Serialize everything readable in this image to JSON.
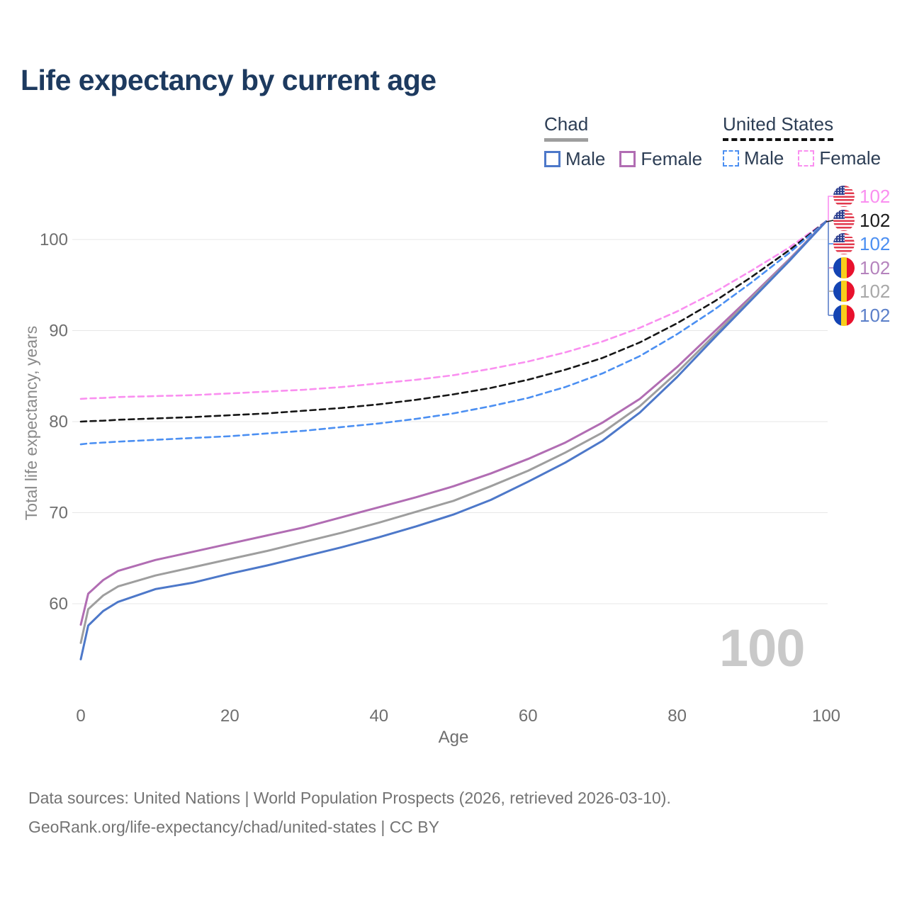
{
  "title": "Life expectancy by current age",
  "legend": {
    "groups": [
      {
        "label": "Chad",
        "style": "solid",
        "items": [
          {
            "label": "Male"
          },
          {
            "label": "Female"
          }
        ]
      },
      {
        "label": "United States",
        "style": "dashed",
        "items": [
          {
            "label": "Male"
          },
          {
            "label": "Female"
          }
        ]
      }
    ]
  },
  "chart_data": {
    "type": "line",
    "title": "Life expectancy by current age",
    "xlabel": "Age",
    "ylabel": "Total life expectancy, years",
    "xlim": [
      0,
      100
    ],
    "ylim": [
      53,
      104
    ],
    "grid": "horizontal",
    "legend_position": "top-right",
    "xticks": [
      "0",
      "20",
      "40",
      "60",
      "80",
      "100"
    ],
    "yticks": [
      "60",
      "70",
      "80",
      "90",
      "100"
    ],
    "x": [
      0,
      1,
      3,
      5,
      10,
      15,
      20,
      25,
      30,
      35,
      40,
      45,
      50,
      55,
      60,
      65,
      70,
      75,
      80,
      85,
      90,
      95,
      100
    ],
    "series": [
      {
        "name": "United States Female",
        "country": "United States",
        "sex": "Female",
        "color": "#fa8ff0",
        "dashed": true,
        "values": [
          82.5,
          82.55,
          82.6,
          82.7,
          82.8,
          82.9,
          83.1,
          83.3,
          83.5,
          83.8,
          84.2,
          84.6,
          85.1,
          85.8,
          86.6,
          87.6,
          88.8,
          90.3,
          92.1,
          94.2,
          96.6,
          99.1,
          102
        ]
      },
      {
        "name": "United States",
        "country": "United States",
        "sex": "Both",
        "color": "#161616",
        "dashed": true,
        "values": [
          80.0,
          80.05,
          80.1,
          80.2,
          80.35,
          80.5,
          80.7,
          80.9,
          81.2,
          81.5,
          81.9,
          82.4,
          83.0,
          83.7,
          84.6,
          85.7,
          87.0,
          88.7,
          90.8,
          93.2,
          95.9,
          98.8,
          102
        ]
      },
      {
        "name": "United States Male",
        "country": "United States",
        "sex": "Male",
        "color": "#4b8ff2",
        "dashed": true,
        "values": [
          77.5,
          77.6,
          77.7,
          77.8,
          78.0,
          78.2,
          78.4,
          78.7,
          79.0,
          79.4,
          79.8,
          80.3,
          80.9,
          81.7,
          82.6,
          83.8,
          85.3,
          87.2,
          89.6,
          92.3,
          95.3,
          98.5,
          102
        ]
      },
      {
        "name": "Chad Female",
        "country": "Chad",
        "sex": "Female",
        "color": "#b16db3",
        "dashed": false,
        "values": [
          57.7,
          61.1,
          62.6,
          63.6,
          64.8,
          65.7,
          66.6,
          67.5,
          68.4,
          69.5,
          70.6,
          71.7,
          72.9,
          74.3,
          75.9,
          77.7,
          79.9,
          82.5,
          86.0,
          89.9,
          93.8,
          97.8,
          102
        ]
      },
      {
        "name": "Chad",
        "country": "Chad",
        "sex": "Both",
        "color": "#9e9e9e",
        "dashed": false,
        "values": [
          55.7,
          59.4,
          60.9,
          61.9,
          63.1,
          64.0,
          64.9,
          65.8,
          66.8,
          67.8,
          68.9,
          70.1,
          71.3,
          72.9,
          74.6,
          76.6,
          78.8,
          81.7,
          85.4,
          89.5,
          93.6,
          97.7,
          102
        ]
      },
      {
        "name": "Chad Male",
        "country": "Chad",
        "sex": "Male",
        "color": "#4d78c9",
        "dashed": false,
        "values": [
          53.9,
          57.6,
          59.2,
          60.2,
          61.6,
          62.3,
          63.3,
          64.2,
          65.2,
          66.2,
          67.3,
          68.5,
          69.8,
          71.4,
          73.4,
          75.5,
          77.9,
          81.0,
          84.9,
          89.2,
          93.4,
          97.6,
          102
        ]
      }
    ]
  },
  "end_labels": {
    "rows": [
      {
        "flag": "us",
        "value": "102",
        "color": "#fa8ff0"
      },
      {
        "flag": "us",
        "value": "102",
        "color": "#1a1a1a"
      },
      {
        "flag": "us",
        "value": "102",
        "color": "#4b8ff2"
      },
      {
        "flag": "chad",
        "value": "102",
        "color": "#b583bd"
      },
      {
        "flag": "chad",
        "value": "102",
        "color": "#a8a8a8"
      },
      {
        "flag": "chad",
        "value": "102",
        "color": "#5b7fc9"
      }
    ]
  },
  "watermark": "100",
  "footer": {
    "line1": "Data sources: United Nations | World Population Prospects (2026, retrieved 2026-03-10).",
    "line2": "GeoRank.org/life-expectancy/chad/united-states | CC BY"
  }
}
